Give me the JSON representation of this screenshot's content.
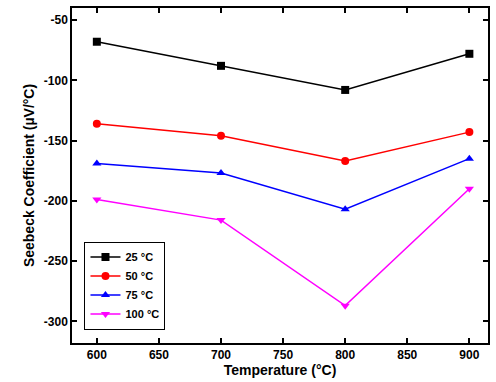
{
  "chart_data": {
    "type": "line",
    "x_label": "Temperature (°C)",
    "y_label": "Seebeck Coefficient (µV/°C)",
    "x": [
      600,
      700,
      800,
      900
    ],
    "series": [
      {
        "name": "25 °C",
        "color": "#000000",
        "marker": "square",
        "values": [
          -68,
          -88,
          -108,
          -78
        ]
      },
      {
        "name": "50 °C",
        "color": "#ff0000",
        "marker": "circle",
        "values": [
          -136,
          -146,
          -167,
          -143
        ]
      },
      {
        "name": "75 °C",
        "color": "#0000ff",
        "marker": "triangle-up",
        "values": [
          -169,
          -177,
          -207,
          -165
        ]
      },
      {
        "name": "100 °C",
        "color": "#ff00ff",
        "marker": "triangle-down",
        "values": [
          -199,
          -216,
          -287,
          -190
        ]
      }
    ],
    "xlim": [
      580,
      915
    ],
    "xticks": [
      600,
      650,
      700,
      750,
      800,
      850,
      900
    ],
    "ylim": [
      -318,
      -40
    ],
    "yticks": [
      -300,
      -250,
      -200,
      -150,
      -100,
      -50
    ],
    "grid": false,
    "legend": "lower left"
  }
}
